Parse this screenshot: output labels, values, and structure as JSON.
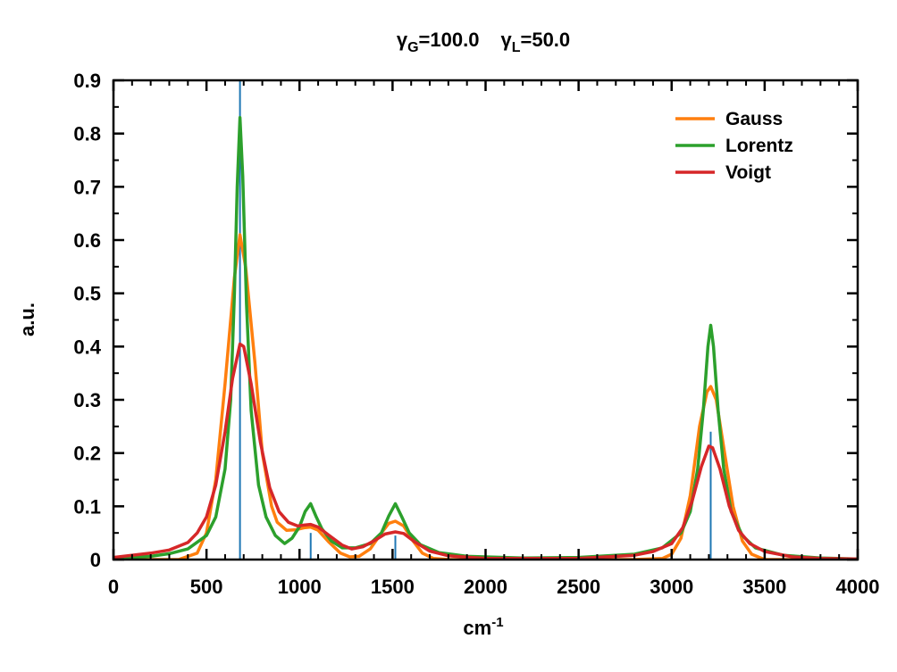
{
  "chart_data": {
    "type": "line",
    "title": {
      "gamma_g_symbol": "γ",
      "gamma_g_sub": "G",
      "gamma_g_value": "=100.0",
      "gamma_l_symbol": "γ",
      "gamma_l_sub": "L",
      "gamma_l_value": "=50.0"
    },
    "xlabel": {
      "base": "cm",
      "sup": "-1"
    },
    "ylabel": "a.u.",
    "xlim": [
      0,
      4000
    ],
    "ylim": [
      0,
      0.9
    ],
    "xticks": [
      0,
      500,
      1000,
      1500,
      2000,
      2500,
      3000,
      3500,
      4000
    ],
    "yticks": [
      0,
      0.1,
      0.2,
      0.3,
      0.4,
      0.5,
      0.6,
      0.7,
      0.8,
      0.9
    ],
    "xtick_labels": [
      "0",
      "500",
      "1000",
      "1500",
      "2000",
      "2500",
      "3000",
      "3500",
      "4000"
    ],
    "ytick_labels": [
      "0",
      "0.1",
      "0.2",
      "0.3",
      "0.4",
      "0.5",
      "0.6",
      "0.7",
      "0.8",
      "0.9"
    ],
    "grid": false,
    "legend_position": "top-right",
    "stick_color": "#1f77b4",
    "sticks": [
      {
        "x": 680,
        "y": 0.9
      },
      {
        "x": 1060,
        "y": 0.05
      },
      {
        "x": 1515,
        "y": 0.045
      },
      {
        "x": 3210,
        "y": 0.24
      }
    ],
    "series": [
      {
        "name": "Gauss",
        "color": "#ff7f0e",
        "points": [
          [
            0,
            0
          ],
          [
            350,
            0.0
          ],
          [
            450,
            0.012
          ],
          [
            500,
            0.05
          ],
          [
            550,
            0.15
          ],
          [
            600,
            0.33
          ],
          [
            650,
            0.53
          ],
          [
            680,
            0.61
          ],
          [
            710,
            0.55
          ],
          [
            760,
            0.37
          ],
          [
            800,
            0.2
          ],
          [
            850,
            0.1
          ],
          [
            880,
            0.07
          ],
          [
            930,
            0.055
          ],
          [
            980,
            0.056
          ],
          [
            1030,
            0.06
          ],
          [
            1060,
            0.061
          ],
          [
            1100,
            0.055
          ],
          [
            1160,
            0.032
          ],
          [
            1220,
            0.012
          ],
          [
            1270,
            0.005
          ],
          [
            1320,
            0.006
          ],
          [
            1380,
            0.02
          ],
          [
            1440,
            0.05
          ],
          [
            1480,
            0.068
          ],
          [
            1515,
            0.072
          ],
          [
            1560,
            0.063
          ],
          [
            1610,
            0.035
          ],
          [
            1660,
            0.012
          ],
          [
            1720,
            0.002
          ],
          [
            1800,
            0
          ],
          [
            2800,
            0
          ],
          [
            2950,
            0.002
          ],
          [
            3000,
            0.01
          ],
          [
            3050,
            0.04
          ],
          [
            3100,
            0.12
          ],
          [
            3150,
            0.25
          ],
          [
            3190,
            0.315
          ],
          [
            3210,
            0.325
          ],
          [
            3240,
            0.3
          ],
          [
            3280,
            0.21
          ],
          [
            3330,
            0.1
          ],
          [
            3380,
            0.035
          ],
          [
            3430,
            0.01
          ],
          [
            3500,
            0
          ],
          [
            4000,
            0
          ]
        ]
      },
      {
        "name": "Lorentz",
        "color": "#2ca02c",
        "points": [
          [
            0,
            0.002
          ],
          [
            200,
            0.006
          ],
          [
            300,
            0.011
          ],
          [
            400,
            0.02
          ],
          [
            500,
            0.045
          ],
          [
            550,
            0.08
          ],
          [
            600,
            0.17
          ],
          [
            630,
            0.3
          ],
          [
            650,
            0.5
          ],
          [
            665,
            0.7
          ],
          [
            680,
            0.83
          ],
          [
            695,
            0.72
          ],
          [
            715,
            0.48
          ],
          [
            740,
            0.28
          ],
          [
            780,
            0.14
          ],
          [
            820,
            0.08
          ],
          [
            870,
            0.045
          ],
          [
            920,
            0.03
          ],
          [
            960,
            0.04
          ],
          [
            1000,
            0.062
          ],
          [
            1030,
            0.09
          ],
          [
            1060,
            0.105
          ],
          [
            1090,
            0.08
          ],
          [
            1120,
            0.058
          ],
          [
            1170,
            0.035
          ],
          [
            1230,
            0.022
          ],
          [
            1300,
            0.022
          ],
          [
            1380,
            0.03
          ],
          [
            1440,
            0.05
          ],
          [
            1480,
            0.082
          ],
          [
            1515,
            0.105
          ],
          [
            1550,
            0.08
          ],
          [
            1590,
            0.05
          ],
          [
            1650,
            0.028
          ],
          [
            1750,
            0.013
          ],
          [
            1900,
            0.006
          ],
          [
            2200,
            0.003
          ],
          [
            2500,
            0.004
          ],
          [
            2800,
            0.01
          ],
          [
            2950,
            0.022
          ],
          [
            3050,
            0.05
          ],
          [
            3100,
            0.09
          ],
          [
            3140,
            0.17
          ],
          [
            3170,
            0.28
          ],
          [
            3195,
            0.4
          ],
          [
            3210,
            0.44
          ],
          [
            3225,
            0.4
          ],
          [
            3250,
            0.28
          ],
          [
            3280,
            0.17
          ],
          [
            3320,
            0.09
          ],
          [
            3380,
            0.045
          ],
          [
            3450,
            0.022
          ],
          [
            3600,
            0.008
          ],
          [
            3800,
            0.003
          ],
          [
            4000,
            0.001
          ]
        ]
      },
      {
        "name": "Voigt",
        "color": "#d62728",
        "points": [
          [
            0,
            0.004
          ],
          [
            200,
            0.012
          ],
          [
            300,
            0.018
          ],
          [
            400,
            0.032
          ],
          [
            450,
            0.05
          ],
          [
            500,
            0.08
          ],
          [
            550,
            0.14
          ],
          [
            600,
            0.24
          ],
          [
            640,
            0.34
          ],
          [
            680,
            0.405
          ],
          [
            700,
            0.4
          ],
          [
            740,
            0.33
          ],
          [
            790,
            0.22
          ],
          [
            840,
            0.135
          ],
          [
            890,
            0.09
          ],
          [
            940,
            0.07
          ],
          [
            990,
            0.063
          ],
          [
            1030,
            0.065
          ],
          [
            1060,
            0.066
          ],
          [
            1100,
            0.061
          ],
          [
            1160,
            0.045
          ],
          [
            1230,
            0.027
          ],
          [
            1280,
            0.02
          ],
          [
            1340,
            0.024
          ],
          [
            1400,
            0.035
          ],
          [
            1460,
            0.048
          ],
          [
            1515,
            0.052
          ],
          [
            1560,
            0.049
          ],
          [
            1620,
            0.033
          ],
          [
            1700,
            0.016
          ],
          [
            1800,
            0.007
          ],
          [
            2000,
            0.002
          ],
          [
            2500,
            0.002
          ],
          [
            2800,
            0.008
          ],
          [
            2900,
            0.015
          ],
          [
            3000,
            0.03
          ],
          [
            3060,
            0.06
          ],
          [
            3110,
            0.11
          ],
          [
            3160,
            0.175
          ],
          [
            3200,
            0.213
          ],
          [
            3220,
            0.21
          ],
          [
            3260,
            0.17
          ],
          [
            3310,
            0.1
          ],
          [
            3360,
            0.055
          ],
          [
            3420,
            0.03
          ],
          [
            3500,
            0.015
          ],
          [
            3650,
            0.005
          ],
          [
            3800,
            0.002
          ],
          [
            4000,
            0.001
          ]
        ]
      }
    ]
  }
}
